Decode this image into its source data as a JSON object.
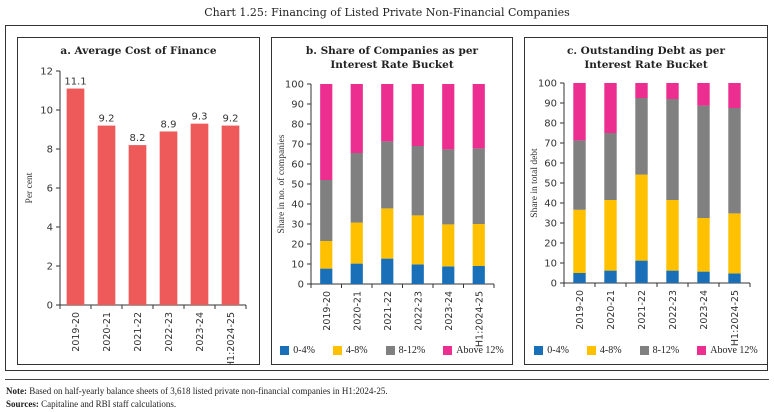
{
  "title": "Chart 1.25: Financing of Listed Private Non-Financial Companies",
  "colors": {
    "bar_a": "#EE5A5A",
    "b0_4": "#1A6FB9",
    "b4_8": "#FFC000",
    "b8_12": "#808080",
    "above12": "#EC2E91"
  },
  "chart_data": [
    {
      "type": "bar",
      "title": "a. Average Cost of Finance",
      "xlabel": "",
      "ylabel": "Per cent",
      "ylim": [
        0,
        12
      ],
      "yticks": [
        0,
        2,
        4,
        6,
        8,
        10,
        12
      ],
      "categories": [
        "2019-20",
        "2020-21",
        "2021-22",
        "2022-23",
        "2023-24",
        "H1:2024-25"
      ],
      "values": [
        11.1,
        9.2,
        8.2,
        8.9,
        9.3,
        9.2
      ],
      "data_labels": [
        "11.1",
        "9.2",
        "8.2",
        "8.9",
        "9.3",
        "9.2"
      ],
      "grid": false
    },
    {
      "type": "bar",
      "stacked": true,
      "title": "b. Share of Companies as per Interest Rate Bucket",
      "title_lines": [
        "b. Share of Companies as per",
        "Interest Rate Bucket"
      ],
      "ylabel": "Share in no. of companies",
      "ylim": [
        0,
        100
      ],
      "yticks": [
        0,
        10,
        20,
        30,
        40,
        50,
        60,
        70,
        80,
        90,
        100
      ],
      "categories": [
        "2019-20",
        "2020-21",
        "2021-22",
        "2022-23",
        "2023-24",
        "H1:2024-25"
      ],
      "series": [
        {
          "name": "0-4%",
          "values": [
            7.7,
            10.2,
            12.7,
            9.8,
            8.8,
            9.0
          ]
        },
        {
          "name": "4-8%",
          "values": [
            13.8,
            20.5,
            25.1,
            24.5,
            21.0,
            21.0
          ]
        },
        {
          "name": "8-12%",
          "values": [
            30.5,
            34.8,
            33.5,
            34.7,
            37.5,
            37.8
          ]
        },
        {
          "name": "Above 12%",
          "values": [
            48.0,
            34.5,
            28.7,
            31.0,
            32.7,
            32.2
          ]
        }
      ],
      "legend": "bottom",
      "grid": false
    },
    {
      "type": "bar",
      "stacked": true,
      "title": "c. Outstanding Debt as per Interest Rate Bucket",
      "title_lines": [
        "c. Outstanding Debt as per",
        "Interest Rate Bucket"
      ],
      "ylabel": "Share in total debt",
      "ylim": [
        0,
        100
      ],
      "yticks": [
        0,
        10,
        20,
        30,
        40,
        50,
        60,
        70,
        80,
        90,
        100
      ],
      "categories": [
        "2019-20",
        "2020-21",
        "2021-22",
        "2022-23",
        "2023-24",
        "H1:2024-25"
      ],
      "series": [
        {
          "name": "0-4%",
          "values": [
            5.0,
            6.2,
            11.2,
            6.2,
            5.7,
            4.8
          ]
        },
        {
          "name": "4-8%",
          "values": [
            31.6,
            35.3,
            43.0,
            35.3,
            26.8,
            30.0
          ]
        },
        {
          "name": "8-12%",
          "values": [
            34.7,
            33.5,
            38.3,
            50.5,
            56.2,
            52.7
          ]
        },
        {
          "name": "Above 12%",
          "values": [
            28.7,
            25.0,
            7.5,
            8.0,
            11.3,
            12.5
          ]
        }
      ],
      "legend": "bottom",
      "grid": false
    }
  ],
  "legend": [
    {
      "label": "0-4%",
      "color": "#1A6FB9"
    },
    {
      "label": "4-8%",
      "color": "#FFC000"
    },
    {
      "label": "8-12%",
      "color": "#808080"
    },
    {
      "label": "Above 12%",
      "color": "#EC2E91"
    }
  ],
  "note": {
    "label": "Note:",
    "text": " Based on half-yearly balance sheets of 3,618 listed private non-financial companies in H1:2024-25."
  },
  "sources": {
    "label": "Sources:",
    "text": " Capitaline and RBI staff calculations."
  }
}
